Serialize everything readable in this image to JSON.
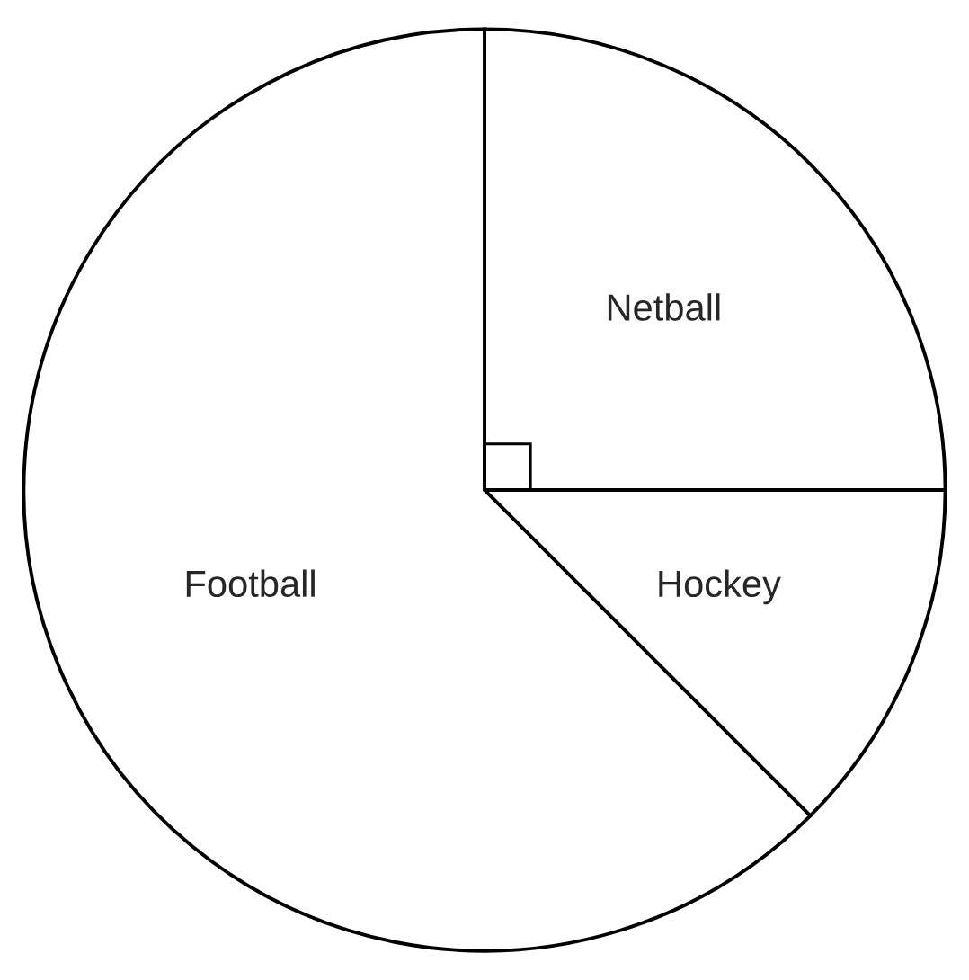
{
  "chart_data": {
    "type": "pie",
    "categories": [
      "Netball",
      "Hockey",
      "Football"
    ],
    "values": [
      25,
      12.5,
      62.5
    ],
    "colors": [
      "#ffffff",
      "#ffffff",
      "#ffffff"
    ]
  }
}
